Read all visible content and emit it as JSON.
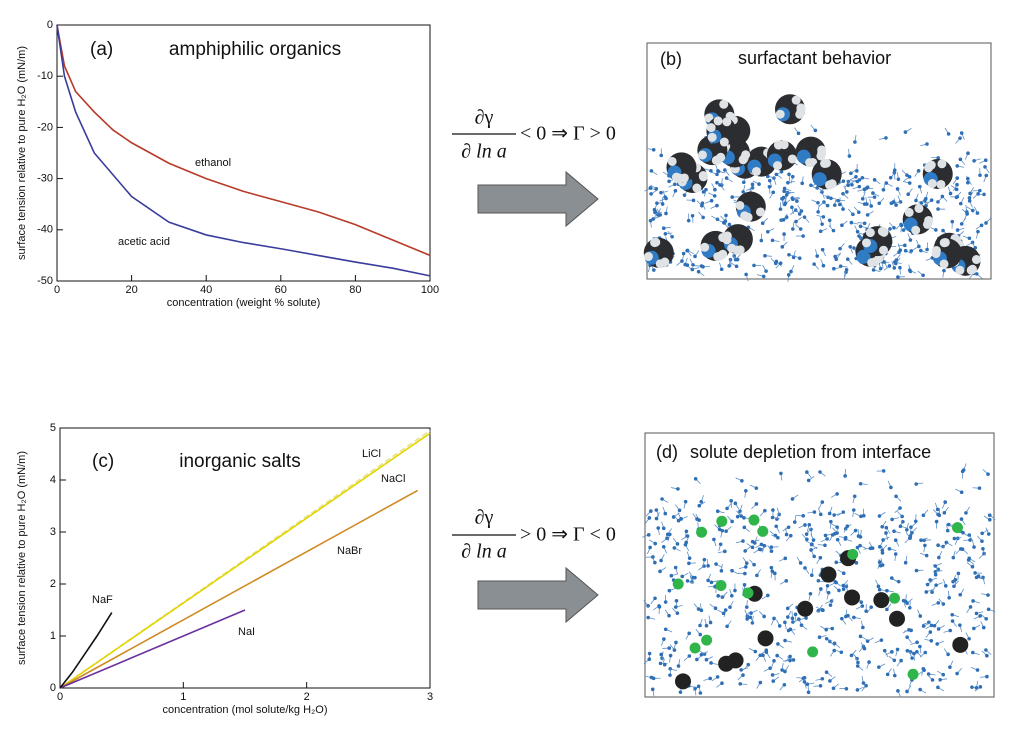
{
  "chart_data": [
    {
      "type": "line",
      "panel_label": "(a)",
      "title": "amphiphilic organics",
      "xlabel": "concentration (weight % solute)",
      "ylabel": "surface tension relative to pure H₂O (mN/m)",
      "xlim": [
        0,
        100
      ],
      "ylim": [
        -50,
        0
      ],
      "xticks": [
        0,
        20,
        40,
        60,
        80,
        100
      ],
      "yticks": [
        0,
        -10,
        -20,
        -30,
        -40,
        -50
      ],
      "series": [
        {
          "name": "ethanol",
          "color": "#b83a28",
          "x": [
            0,
            2,
            5,
            10,
            15,
            20,
            30,
            40,
            50,
            60,
            70,
            80,
            90,
            100
          ],
          "values": [
            0,
            -8,
            -13,
            -17,
            -20.5,
            -23,
            -27,
            -30,
            -32.5,
            -34.5,
            -36.5,
            -39,
            -42,
            -45
          ]
        },
        {
          "name": "acetic acid",
          "color": "#3a3c9c",
          "x": [
            0,
            2,
            5,
            10,
            20,
            30,
            40,
            50,
            60,
            70,
            80,
            90,
            100
          ],
          "values": [
            0,
            -10,
            -17,
            -25,
            -33.5,
            -38.5,
            -41,
            -42.5,
            -43.7,
            -45,
            -46.3,
            -47.5,
            -49
          ]
        }
      ]
    },
    {
      "type": "line",
      "panel_label": "(c)",
      "title": "inorganic salts",
      "xlabel": "concentration (mol solute/kg H₂O)",
      "ylabel": "surface tension relative to pure H₂O (mN/m)",
      "xlim": [
        0,
        3
      ],
      "ylim": [
        0,
        5
      ],
      "xticks": [
        0,
        1,
        2,
        3
      ],
      "yticks": [
        0,
        1,
        2,
        3,
        4,
        5
      ],
      "series": [
        {
          "name": "LiCl",
          "color": "#e6e48a",
          "dashed": true,
          "x": [
            0,
            3
          ],
          "values": [
            0,
            4.95
          ]
        },
        {
          "name": "NaCl",
          "color": "#e2d400",
          "x": [
            0,
            3
          ],
          "values": [
            0,
            4.9
          ]
        },
        {
          "name": "NaBr",
          "color": "#d08a22",
          "x": [
            0,
            2.9
          ],
          "values": [
            0,
            3.8
          ]
        },
        {
          "name": "NaI",
          "color": "#6a30a0",
          "x": [
            0,
            1.5
          ],
          "values": [
            0,
            1.5
          ]
        },
        {
          "name": "NaF",
          "color": "#111111",
          "x": [
            0,
            0.1,
            0.2,
            0.3,
            0.42
          ],
          "values": [
            0,
            0.3,
            0.65,
            1.0,
            1.45
          ]
        }
      ]
    }
  ],
  "panels": [
    {
      "label": "(b)",
      "title": "surfactant behavior"
    },
    {
      "label": "(d)",
      "title": "solute depletion from interface"
    }
  ],
  "equations": [
    {
      "numerator": "∂γ",
      "denominator": "∂ ln a",
      "relation": "< 0 ⇒ Γ > 0"
    },
    {
      "numerator": "∂γ",
      "denominator": "∂ ln a",
      "relation": "> 0 ⇒ Γ < 0"
    }
  ]
}
